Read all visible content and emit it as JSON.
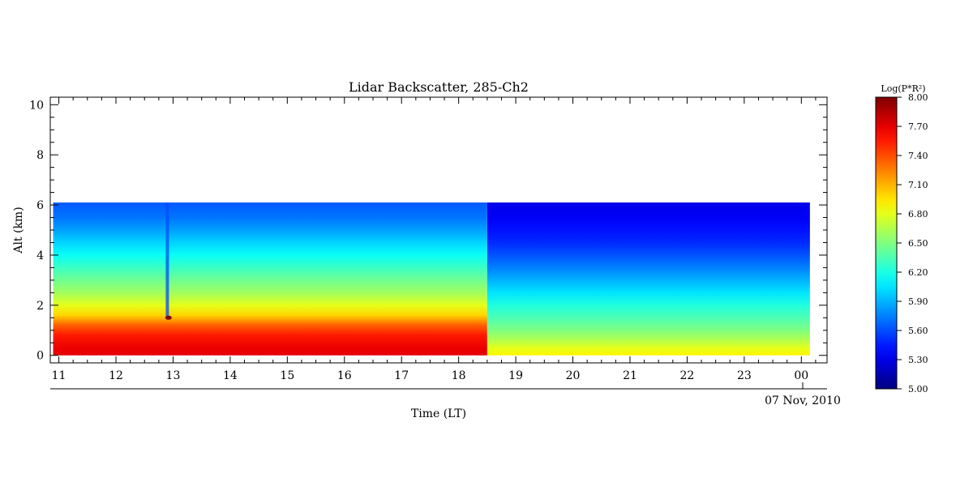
{
  "chart_data": {
    "type": "heatmap",
    "title": "Lidar Backscatter, 285-Ch2",
    "xlabel": "Time (LT)",
    "ylabel": "Alt (km)",
    "date_label": "07 Nov, 2010",
    "x_ticks": [
      "11",
      "12",
      "13",
      "14",
      "15",
      "16",
      "17",
      "18",
      "19",
      "20",
      "21",
      "22",
      "23",
      "00"
    ],
    "y_ticks": [
      "0",
      "2",
      "4",
      "6",
      "8",
      "10"
    ],
    "xlim": [
      10.85,
      24.45
    ],
    "ylim": [
      -0.3,
      10.3
    ],
    "data_x_range": [
      10.9,
      24.15
    ],
    "data_y_range": [
      0.0,
      6.1
    ],
    "colorbar": {
      "label": "Log(P*R²)",
      "min": 5.0,
      "max": 8.0,
      "ticks": [
        "8.00",
        "7.70",
        "7.40",
        "7.10",
        "6.80",
        "6.50",
        "6.20",
        "5.90",
        "5.60",
        "5.30",
        "5.00"
      ],
      "colormap": "jet"
    },
    "profiles": [
      {
        "period": "11-18.5 LT",
        "x_range": [
          10.9,
          18.5
        ],
        "altitudes_km": [
          0.0,
          0.3,
          0.8,
          1.2,
          1.6,
          2.0,
          2.5,
          3.0,
          3.5,
          4.0,
          4.5,
          5.0,
          5.5,
          6.0
        ],
        "values": [
          7.7,
          7.68,
          7.55,
          7.35,
          7.0,
          6.8,
          6.6,
          6.45,
          6.3,
          6.15,
          6.0,
          5.85,
          5.72,
          5.65
        ]
      },
      {
        "period": "18.5-00 LT",
        "x_range": [
          18.5,
          24.15
        ],
        "altitudes_km": [
          0.0,
          0.3,
          0.6,
          1.0,
          1.5,
          2.0,
          2.5,
          3.0,
          3.5,
          4.0,
          4.5,
          5.0,
          5.5,
          6.0
        ],
        "values": [
          6.9,
          6.8,
          6.65,
          6.5,
          6.35,
          6.22,
          6.05,
          5.9,
          5.75,
          5.62,
          5.5,
          5.42,
          5.35,
          5.32
        ]
      }
    ],
    "features": [
      {
        "type": "vertical-streak",
        "x": 12.9,
        "y_range": [
          1.5,
          6.1
        ]
      },
      {
        "type": "hotspot",
        "x": 12.92,
        "y": 1.5,
        "value": 8.0
      }
    ]
  }
}
